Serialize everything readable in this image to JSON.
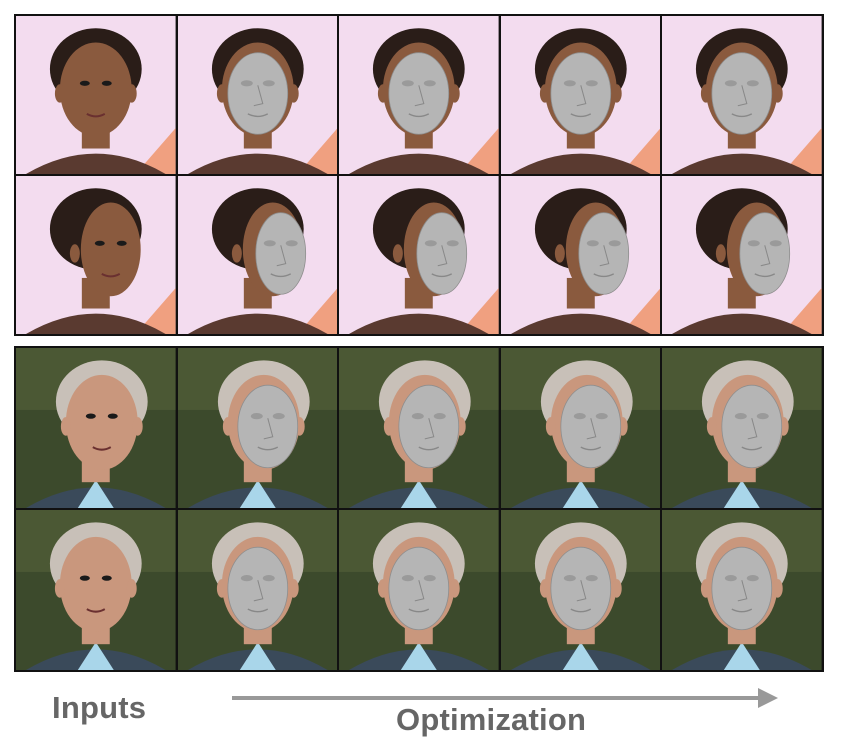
{
  "labels": {
    "inputs": "Inputs",
    "optimization": "Optimization"
  },
  "colors": {
    "arrow": "#999999",
    "label": "#666666",
    "mesh": "#b5b5b5",
    "background_pink": "#f3dcef",
    "background_green": "#3c4a2c"
  },
  "groups": [
    {
      "rows": [
        {
          "view": "frontal",
          "background": "pink",
          "columns": [
            "input-photo",
            "mesh-overlay",
            "mesh-overlay",
            "mesh-overlay",
            "mesh-overlay"
          ]
        },
        {
          "view": "profile",
          "background": "pink",
          "columns": [
            "input-photo",
            "mesh-overlay",
            "mesh-overlay",
            "mesh-overlay",
            "mesh-overlay"
          ]
        }
      ]
    },
    {
      "rows": [
        {
          "view": "three-quarter",
          "background": "green",
          "columns": [
            "input-photo",
            "mesh-overlay",
            "mesh-overlay",
            "mesh-overlay",
            "mesh-overlay"
          ]
        },
        {
          "view": "frontal",
          "background": "green",
          "columns": [
            "input-photo",
            "mesh-overlay",
            "mesh-overlay",
            "mesh-overlay",
            "mesh-overlay"
          ]
        }
      ]
    }
  ]
}
